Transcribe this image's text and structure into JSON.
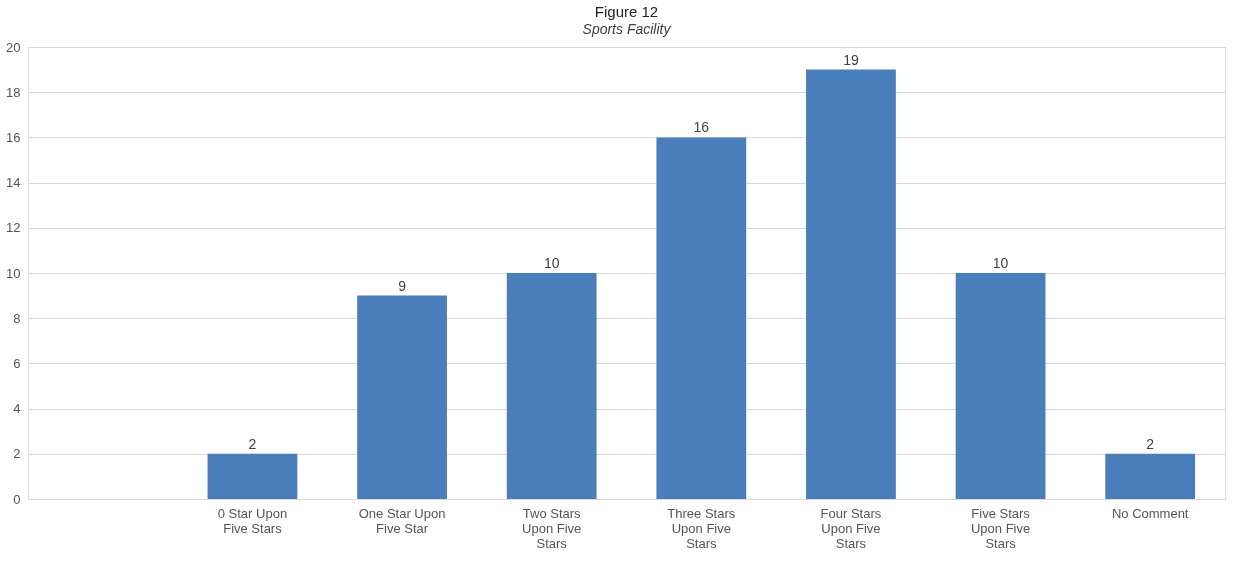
{
  "chart_data": {
    "type": "bar",
    "title": "Figure 12",
    "subtitle": "Sports Facility",
    "categories": [
      null,
      "0 Star Upon Five Stars",
      "One Star Upon Five Star",
      "Two  Stars Upon Five Stars",
      "Three Stars Upon Five Stars",
      "Four Stars Upon Five Stars",
      "Five Stars Upon Five Stars",
      "No Comment"
    ],
    "values": [
      null,
      2,
      9,
      10,
      16,
      19,
      10,
      2
    ],
    "color": "#4a7ebb",
    "ylim": [
      0,
      20
    ],
    "yticks": [
      0,
      2,
      4,
      6,
      8,
      10,
      12,
      14,
      16,
      18,
      20
    ],
    "grid": "y",
    "data_labels": true
  }
}
